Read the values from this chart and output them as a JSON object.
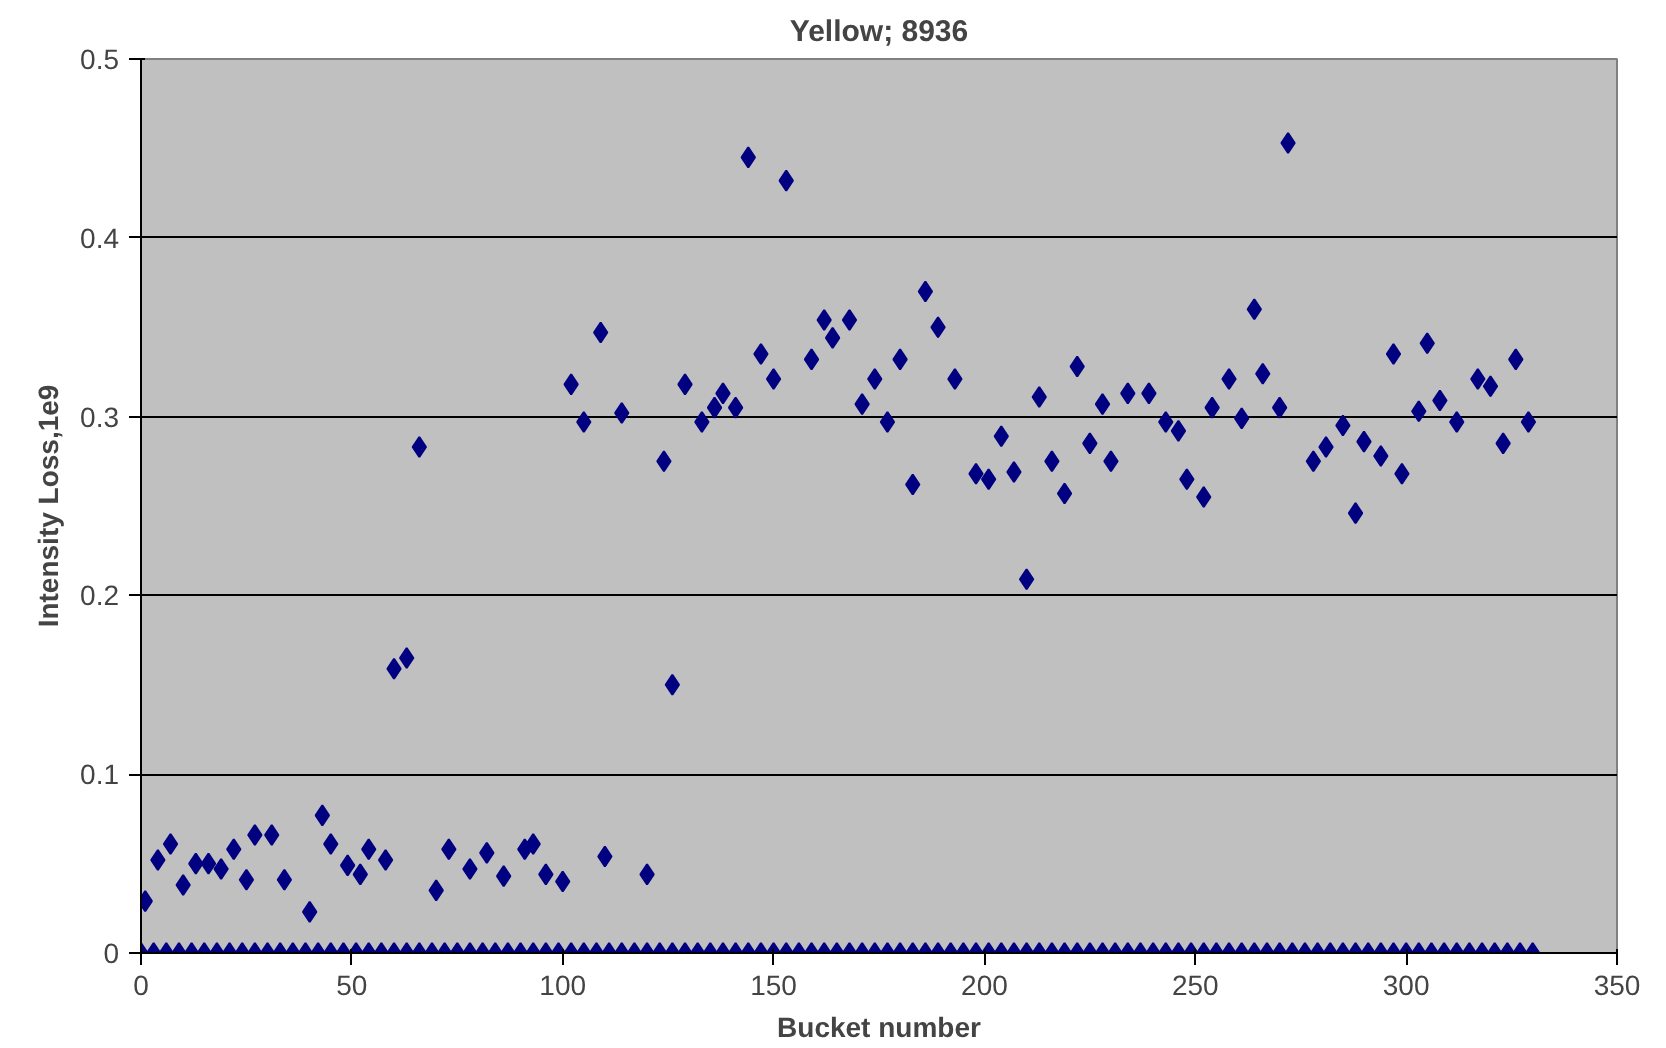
{
  "chart_data": {
    "type": "scatter",
    "title": "Yellow; 8936",
    "xlabel": "Bucket number",
    "ylabel": "Intensity Loss,1e9",
    "xlim": [
      0,
      350
    ],
    "ylim": [
      0,
      0.5
    ],
    "xticks": [
      0,
      50,
      100,
      150,
      200,
      250,
      300,
      350
    ],
    "yticks": [
      0,
      0.1,
      0.2,
      0.3,
      0.4,
      0.5
    ],
    "grid": "y",
    "marker": "diamond",
    "series": [
      {
        "color": "#000080",
        "x": [
          0,
          3,
          6,
          9,
          12,
          15,
          18,
          21,
          24,
          27,
          30,
          33,
          36,
          39,
          42,
          45,
          48,
          51,
          54,
          57,
          60,
          63,
          66,
          69,
          72,
          75,
          78,
          81,
          84,
          87,
          90,
          93,
          96,
          99,
          102,
          105,
          108,
          111,
          114,
          117,
          120,
          123,
          126,
          129,
          132,
          135,
          138,
          141,
          144,
          147,
          150,
          153,
          156,
          159,
          162,
          165,
          168,
          171,
          174,
          177,
          180,
          183,
          186,
          189,
          192,
          195,
          198,
          201,
          204,
          207,
          210,
          213,
          216,
          219,
          222,
          225,
          228,
          231,
          234,
          237,
          240,
          243,
          246,
          249,
          252,
          255,
          258,
          261,
          264,
          267,
          270,
          273,
          276,
          279,
          282,
          285,
          288,
          291,
          294,
          297,
          300,
          303,
          306,
          309,
          312,
          315,
          318,
          321,
          324,
          327,
          330
        ],
        "values": [
          0,
          0,
          0,
          0,
          0,
          0,
          0,
          0,
          0,
          0,
          0,
          0,
          0,
          0,
          0,
          0,
          0,
          0,
          0,
          0,
          0,
          0,
          0,
          0,
          0,
          0,
          0,
          0,
          0,
          0,
          0,
          0,
          0,
          0,
          0,
          0,
          0,
          0,
          0,
          0,
          0,
          0,
          0,
          0,
          0,
          0,
          0,
          0,
          0,
          0,
          0,
          0,
          0,
          0,
          0,
          0,
          0,
          0,
          0,
          0,
          0,
          0,
          0,
          0,
          0,
          0,
          0,
          0,
          0,
          0,
          0,
          0,
          0,
          0,
          0,
          0,
          0,
          0,
          0,
          0,
          0,
          0,
          0,
          0,
          0,
          0,
          0,
          0,
          0,
          0,
          0,
          0,
          0,
          0,
          0,
          0,
          0,
          0,
          0,
          0,
          0,
          0,
          0,
          0,
          0,
          0,
          0,
          0,
          0,
          0,
          0
        ]
      },
      {
        "color": "#000080",
        "x": [
          1,
          4,
          7,
          10,
          13,
          16,
          19,
          22,
          25,
          27,
          31,
          34,
          40,
          43,
          45,
          49,
          52,
          54,
          58,
          60,
          63,
          66,
          70,
          73,
          78,
          82,
          86,
          91,
          93,
          96,
          100,
          102,
          105,
          109,
          110,
          114,
          120,
          124,
          126,
          129,
          133,
          136,
          138,
          141,
          144,
          147,
          150,
          153,
          159,
          162,
          164,
          168,
          171,
          174,
          177,
          180,
          183,
          186,
          189,
          193,
          198,
          201,
          204,
          207,
          210,
          213,
          216,
          219,
          222,
          225,
          228,
          230,
          234,
          239,
          243,
          246,
          248,
          252,
          254,
          258,
          261,
          264,
          266,
          270,
          272,
          278,
          281,
          285,
          288,
          290,
          294,
          297,
          299,
          303,
          305,
          308,
          312,
          317,
          320,
          323,
          326,
          329
        ],
        "values": [
          0.029,
          0.052,
          0.061,
          0.038,
          0.05,
          0.05,
          0.047,
          0.058,
          0.041,
          0.066,
          0.066,
          0.041,
          0.023,
          0.077,
          0.061,
          0.049,
          0.044,
          0.058,
          0.052,
          0.159,
          0.165,
          0.283,
          0.035,
          0.058,
          0.047,
          0.056,
          0.043,
          0.058,
          0.061,
          0.044,
          0.04,
          0.318,
          0.297,
          0.347,
          0.054,
          0.302,
          0.044,
          0.275,
          0.15,
          0.318,
          0.297,
          0.305,
          0.313,
          0.305,
          0.445,
          0.335,
          0.321,
          0.432,
          0.332,
          0.354,
          0.344,
          0.354,
          0.307,
          0.321,
          0.297,
          0.332,
          0.262,
          0.37,
          0.35,
          0.321,
          0.268,
          0.265,
          0.289,
          0.269,
          0.209,
          0.311,
          0.275,
          0.257,
          0.328,
          0.285,
          0.307,
          0.275,
          0.313,
          0.313,
          0.297,
          0.292,
          0.265,
          0.255,
          0.305,
          0.321,
          0.299,
          0.36,
          0.324,
          0.305,
          0.453,
          0.275,
          0.283,
          0.295,
          0.246,
          0.286,
          0.278,
          0.335,
          0.268,
          0.303,
          0.341,
          0.309,
          0.297,
          0.321,
          0.317,
          0.285,
          0.332,
          0.297
        ]
      }
    ]
  }
}
